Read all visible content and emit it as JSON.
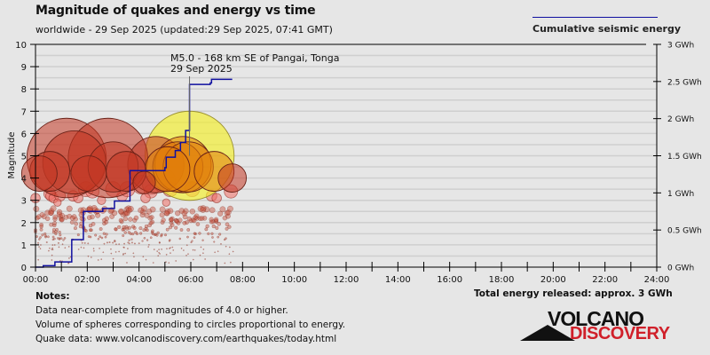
{
  "header": {
    "title": "Magnitude of quakes and energy vs time",
    "subtitle": "worldwide - 29 Sep 2025 (updated:29 Sep 2025, 07:41 GMT)"
  },
  "legend": {
    "label": "Cumulative seismic energy",
    "line_color": "#1010a0"
  },
  "notes": {
    "heading": "Notes:",
    "lines": [
      "Data near-complete from magnitudes of 4.0 or higher.",
      "Volume of spheres corresponding to circles proportional to energy.",
      "Quake data: www.volcanodiscovery.com/earthquakes/today.html"
    ]
  },
  "total_energy": "Total energy released: approx. 3 GWh",
  "logo": {
    "top": "VOLCANO",
    "bottom": "DISCOVERY"
  },
  "chart_data": {
    "type": "scatter",
    "title": "Magnitude of quakes and energy vs time",
    "xlabel": "",
    "ylabel": "Magnitude",
    "y2label": "Cumulative seismic energy (GWh)",
    "xlim_hours": [
      0,
      24
    ],
    "ylim": [
      0,
      10
    ],
    "y2lim": [
      0,
      3
    ],
    "x_ticks": [
      "00:00",
      "02:00",
      "04:00",
      "06:00",
      "08:00",
      "10:00",
      "12:00",
      "14:00",
      "16:00",
      "18:00",
      "20:00",
      "22:00",
      "24:00"
    ],
    "y_ticks": [
      "0",
      "1",
      "2",
      "3",
      "4",
      "5",
      "6",
      "7",
      "8",
      "9",
      "10"
    ],
    "y2_ticks": [
      "0 GWh",
      "0.5 GWh",
      "1 GWh",
      "1.5 GWh",
      "2 GWh",
      "2.5 GWh",
      "3 GWh"
    ],
    "grid": true,
    "legend_position": "top-right",
    "annotation": {
      "line1": "M5.0 - 168 km SE of Pangai, Tonga",
      "line2": "29 Sep 2025",
      "time_h": 5.95,
      "mag": 5.0
    },
    "colors": {
      "recent": "#f0f020",
      "mid": "#e08a00",
      "old": "#c03a20",
      "cumulative": "#1010a0"
    },
    "large_quakes": [
      {
        "t": 0.15,
        "mag": 4.2,
        "age": "old"
      },
      {
        "t": 0.55,
        "mag": 4.3,
        "age": "old"
      },
      {
        "t": 1.2,
        "mag": 4.9,
        "age": "old"
      },
      {
        "t": 1.5,
        "mag": 4.7,
        "age": "old"
      },
      {
        "t": 2.05,
        "mag": 4.2,
        "age": "old"
      },
      {
        "t": 2.8,
        "mag": 4.9,
        "age": "old"
      },
      {
        "t": 3.0,
        "mag": 4.5,
        "age": "old"
      },
      {
        "t": 3.5,
        "mag": 4.3,
        "age": "old"
      },
      {
        "t": 4.65,
        "mag": 4.6,
        "age": "old"
      },
      {
        "t": 4.2,
        "mag": 3.8,
        "age": "old"
      },
      {
        "t": 5.1,
        "mag": 4.4,
        "age": "mid"
      },
      {
        "t": 5.5,
        "mag": 4.5,
        "age": "mid"
      },
      {
        "t": 5.95,
        "mag": 5.0,
        "age": "recent"
      },
      {
        "t": 5.7,
        "mag": 4.6,
        "age": "mid"
      },
      {
        "t": 5.9,
        "mag": 4.5,
        "age": "mid"
      },
      {
        "t": 6.9,
        "mag": 4.3,
        "age": "mid"
      },
      {
        "t": 7.6,
        "mag": 4.0,
        "age": "old"
      }
    ],
    "medium_quakes": [
      {
        "t": 0.0,
        "mag": 3.1
      },
      {
        "t": 0.55,
        "mag": 3.3
      },
      {
        "t": 0.6,
        "mag": 3.2
      },
      {
        "t": 0.7,
        "mag": 3.1
      },
      {
        "t": 0.95,
        "mag": 3.2
      },
      {
        "t": 0.85,
        "mag": 2.9
      },
      {
        "t": 1.45,
        "mag": 3.2
      },
      {
        "t": 1.65,
        "mag": 3.1
      },
      {
        "t": 1.95,
        "mag": 3.5
      },
      {
        "t": 2.2,
        "mag": 3.4
      },
      {
        "t": 2.55,
        "mag": 3.0
      },
      {
        "t": 3.35,
        "mag": 3.2
      },
      {
        "t": 3.55,
        "mag": 3.5
      },
      {
        "t": 3.0,
        "mag": 3.5
      },
      {
        "t": 4.1,
        "mag": 3.7
      },
      {
        "t": 4.45,
        "mag": 3.4
      },
      {
        "t": 4.25,
        "mag": 3.1
      },
      {
        "t": 5.05,
        "mag": 2.9
      },
      {
        "t": 5.2,
        "mag": 3.5
      },
      {
        "t": 6.05,
        "mag": 3.5
      },
      {
        "t": 6.8,
        "mag": 3.2
      },
      {
        "t": 7.0,
        "mag": 3.1
      },
      {
        "t": 7.55,
        "mag": 3.4
      },
      {
        "t": 4.5,
        "mag": 3.7
      },
      {
        "t": 4.95,
        "mag": 3.9
      }
    ],
    "cumulative_energy_steps_h_gwh": [
      [
        0.0,
        0.0
      ],
      [
        0.3,
        0.02
      ],
      [
        0.7,
        0.02
      ],
      [
        0.75,
        0.07
      ],
      [
        1.35,
        0.07
      ],
      [
        1.4,
        0.37
      ],
      [
        1.8,
        0.37
      ],
      [
        1.85,
        0.75
      ],
      [
        2.6,
        0.79
      ],
      [
        3.0,
        0.79
      ],
      [
        3.05,
        0.89
      ],
      [
        3.6,
        0.89
      ],
      [
        3.65,
        1.3
      ],
      [
        5.0,
        1.34
      ],
      [
        5.05,
        1.48
      ],
      [
        5.35,
        1.48
      ],
      [
        5.4,
        1.57
      ],
      [
        5.6,
        1.68
      ],
      [
        5.8,
        1.84
      ],
      [
        5.95,
        2.46
      ],
      [
        6.75,
        2.48
      ],
      [
        6.8,
        2.53
      ],
      [
        7.6,
        2.53
      ]
    ]
  }
}
